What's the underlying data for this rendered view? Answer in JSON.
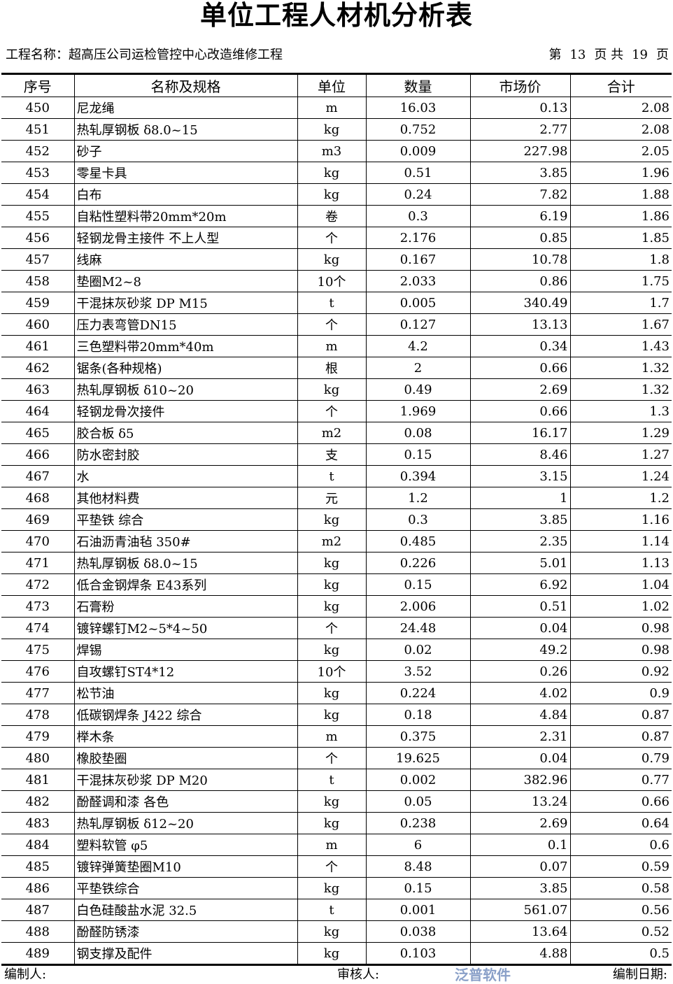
{
  "title": "单位工程人材机分析表",
  "project_label": "工程名称：超高压公司运检管控中心改造维修工程",
  "page": {
    "prefix": "第",
    "current": "13",
    "mid": "页 共",
    "total": "19",
    "suffix": "页"
  },
  "columns": [
    "序号",
    "名称及规格",
    "单位",
    "数量",
    "市场价",
    "合计"
  ],
  "rows": [
    [
      "450",
      "尼龙绳",
      "m",
      "16.03",
      "0.13",
      "2.08"
    ],
    [
      "451",
      "热轧厚钢板 δ8.0~15",
      "kg",
      "0.752",
      "2.77",
      "2.08"
    ],
    [
      "452",
      "砂子",
      "m3",
      "0.009",
      "227.98",
      "2.05"
    ],
    [
      "453",
      "零星卡具",
      "kg",
      "0.51",
      "3.85",
      "1.96"
    ],
    [
      "454",
      "白布",
      "kg",
      "0.24",
      "7.82",
      "1.88"
    ],
    [
      "455",
      "自粘性塑料带20mm*20m",
      "卷",
      "0.3",
      "6.19",
      "1.86"
    ],
    [
      "456",
      "轻钢龙骨主接件 不上人型",
      "个",
      "2.176",
      "0.85",
      "1.85"
    ],
    [
      "457",
      "线麻",
      "kg",
      "0.167",
      "10.78",
      "1.8"
    ],
    [
      "458",
      "垫圈M2~8",
      "10个",
      "2.033",
      "0.86",
      "1.75"
    ],
    [
      "459",
      "干混抹灰砂浆 DP M15",
      "t",
      "0.005",
      "340.49",
      "1.7"
    ],
    [
      "460",
      "压力表弯管DN15",
      "个",
      "0.127",
      "13.13",
      "1.67"
    ],
    [
      "461",
      "三色塑料带20mm*40m",
      "m",
      "4.2",
      "0.34",
      "1.43"
    ],
    [
      "462",
      "锯条(各种规格)",
      "根",
      "2",
      "0.66",
      "1.32"
    ],
    [
      "463",
      "热轧厚钢板 δ10~20",
      "kg",
      "0.49",
      "2.69",
      "1.32"
    ],
    [
      "464",
      "轻钢龙骨次接件",
      "个",
      "1.969",
      "0.66",
      "1.3"
    ],
    [
      "465",
      "胶合板 δ5",
      "m2",
      "0.08",
      "16.17",
      "1.29"
    ],
    [
      "466",
      "防水密封胶",
      "支",
      "0.15",
      "8.46",
      "1.27"
    ],
    [
      "467",
      "水",
      "t",
      "0.394",
      "3.15",
      "1.24"
    ],
    [
      "468",
      "其他材料费",
      "元",
      "1.2",
      "1",
      "1.2"
    ],
    [
      "469",
      "平垫铁 综合",
      "kg",
      "0.3",
      "3.85",
      "1.16"
    ],
    [
      "470",
      "石油沥青油毡 350#",
      "m2",
      "0.485",
      "2.35",
      "1.14"
    ],
    [
      "471",
      "热轧厚钢板 δ8.0~15",
      "kg",
      "0.226",
      "5.01",
      "1.13"
    ],
    [
      "472",
      "低合金钢焊条 E43系列",
      "kg",
      "0.15",
      "6.92",
      "1.04"
    ],
    [
      "473",
      "石膏粉",
      "kg",
      "2.006",
      "0.51",
      "1.02"
    ],
    [
      "474",
      "镀锌螺钉M2~5*4~50",
      "个",
      "24.48",
      "0.04",
      "0.98"
    ],
    [
      "475",
      "焊锡",
      "kg",
      "0.02",
      "49.2",
      "0.98"
    ],
    [
      "476",
      "自攻螺钉ST4*12",
      "10个",
      "3.52",
      "0.26",
      "0.92"
    ],
    [
      "477",
      "松节油",
      "kg",
      "0.224",
      "4.02",
      "0.9"
    ],
    [
      "478",
      "低碳钢焊条 J422 综合",
      "kg",
      "0.18",
      "4.84",
      "0.87"
    ],
    [
      "479",
      "榉木条",
      "m",
      "0.375",
      "2.31",
      "0.87"
    ],
    [
      "480",
      "橡胶垫圈",
      "个",
      "19.625",
      "0.04",
      "0.79"
    ],
    [
      "481",
      "干混抹灰砂浆 DP M20",
      "t",
      "0.002",
      "382.96",
      "0.77"
    ],
    [
      "482",
      "酚醛调和漆 各色",
      "kg",
      "0.05",
      "13.24",
      "0.66"
    ],
    [
      "483",
      "热轧厚钢板 δ12~20",
      "kg",
      "0.238",
      "2.69",
      "0.64"
    ],
    [
      "484",
      "塑料软管 φ5",
      "m",
      "6",
      "0.1",
      "0.6"
    ],
    [
      "485",
      "镀锌弹簧垫圈M10",
      "个",
      "8.48",
      "0.07",
      "0.59"
    ],
    [
      "486",
      "平垫铁综合",
      "kg",
      "0.15",
      "3.85",
      "0.58"
    ],
    [
      "487",
      "白色硅酸盐水泥 32.5",
      "t",
      "0.001",
      "561.07",
      "0.56"
    ],
    [
      "488",
      "酚醛防锈漆",
      "kg",
      "0.038",
      "13.64",
      "0.52"
    ],
    [
      "489",
      "钢支撑及配件",
      "kg",
      "0.103",
      "4.88",
      "0.5"
    ]
  ],
  "footer": {
    "preparer": "编制人:",
    "reviewer": "审核人:",
    "date": "编制日期:"
  },
  "logo": "泛普软件"
}
